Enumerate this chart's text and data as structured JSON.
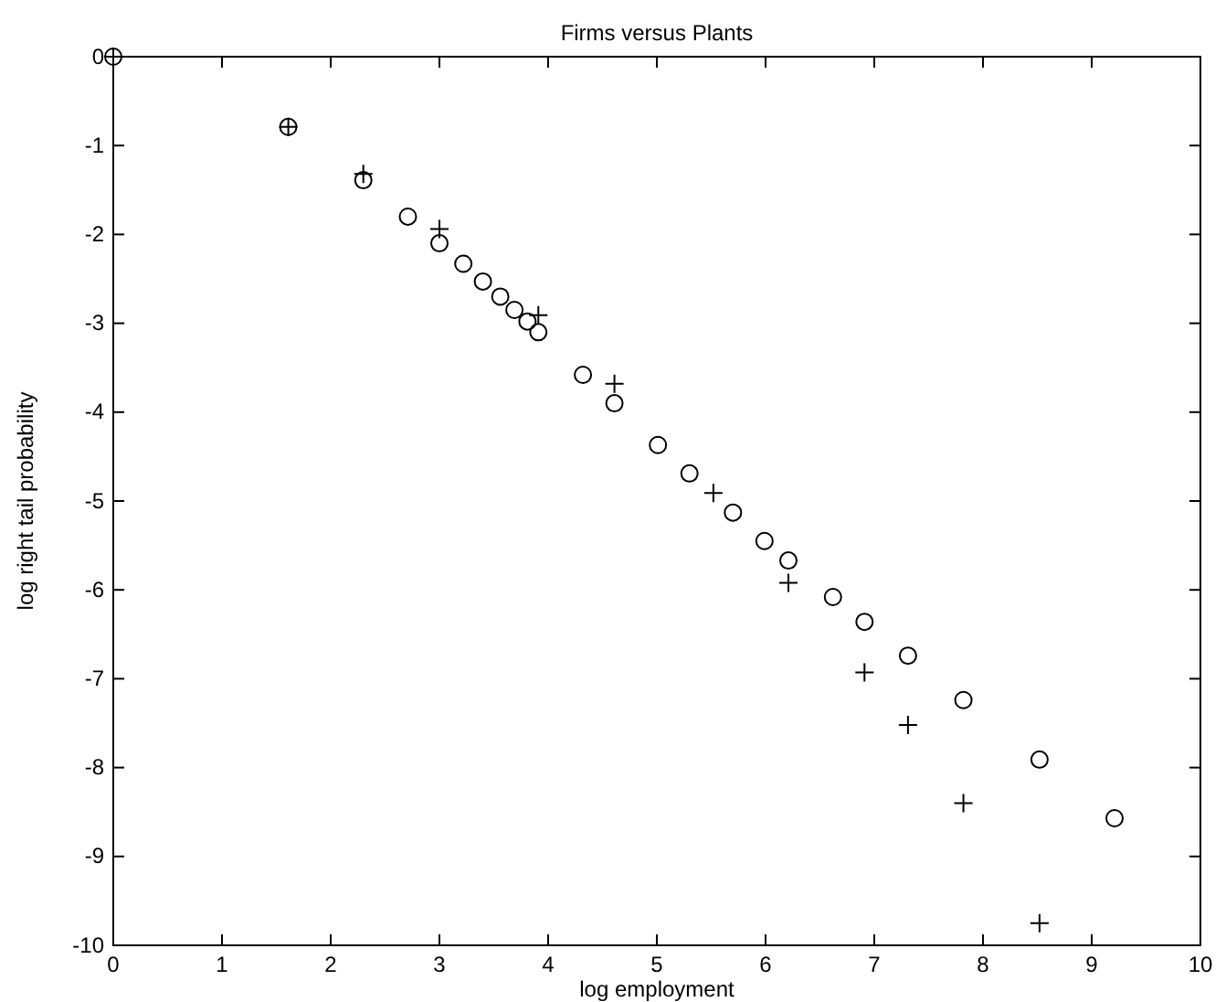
{
  "chart_data": {
    "type": "scatter",
    "title": "Firms versus Plants",
    "xlabel": "log employment",
    "ylabel": "log right tail probability",
    "xlim": [
      0,
      10
    ],
    "ylim": [
      -10,
      0
    ],
    "xticks": [
      0,
      1,
      2,
      3,
      4,
      5,
      6,
      7,
      8,
      9,
      10
    ],
    "yticks": [
      -10,
      -9,
      -8,
      -7,
      -6,
      -5,
      -4,
      -3,
      -2,
      -1,
      0
    ],
    "grid": false,
    "series": [
      {
        "color": "#000000",
        "marker": "circle",
        "x": [
          0,
          1.61,
          2.3,
          2.71,
          3.0,
          3.22,
          3.4,
          3.56,
          3.69,
          3.81,
          3.91,
          4.32,
          4.61,
          5.01,
          5.3,
          5.7,
          5.99,
          6.21,
          6.62,
          6.91,
          7.31,
          7.82,
          8.52,
          9.21
        ],
        "values": [
          0,
          -0.79,
          -1.39,
          -1.8,
          -2.1,
          -2.33,
          -2.53,
          -2.7,
          -2.85,
          -2.98,
          -3.1,
          -3.58,
          -3.9,
          -4.37,
          -4.69,
          -5.13,
          -5.45,
          -5.67,
          -6.08,
          -6.36,
          -6.74,
          -7.24,
          -7.91,
          -8.57
        ]
      },
      {
        "color": "#000000",
        "marker": "cross",
        "x": [
          0,
          1.61,
          2.3,
          3.0,
          3.91,
          4.61,
          5.52,
          6.21,
          6.91,
          7.31,
          7.82,
          8.52
        ],
        "values": [
          0,
          -0.79,
          -1.32,
          -1.94,
          -2.91,
          -3.68,
          -4.91,
          -5.92,
          -6.93,
          -7.52,
          -8.4,
          -9.75
        ]
      }
    ]
  }
}
